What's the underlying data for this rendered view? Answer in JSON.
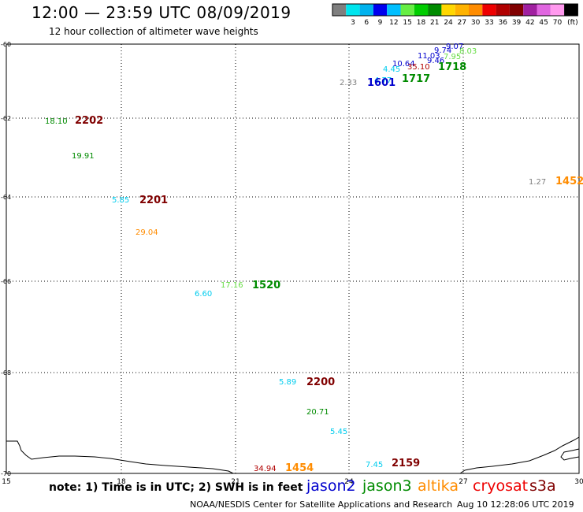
{
  "header": {
    "title": "12:00 — 23:59 UTC 08/09/2019",
    "subtitle": "12 hour collection of altimeter wave heights"
  },
  "color_scale": {
    "unit_label": "(ft)",
    "swatches": [
      {
        "label": "",
        "color": "#7f7f7f"
      },
      {
        "label": "3",
        "color": "#00e5ee"
      },
      {
        "label": "6",
        "color": "#00b2ee"
      },
      {
        "label": "9",
        "color": "#0000ee"
      },
      {
        "label": "12",
        "color": "#00bfff"
      },
      {
        "label": "15",
        "color": "#66ee44"
      },
      {
        "label": "18",
        "color": "#00cd00"
      },
      {
        "label": "21",
        "color": "#008b00"
      },
      {
        "label": "24",
        "color": "#ffd700"
      },
      {
        "label": "27",
        "color": "#ffb300"
      },
      {
        "label": "30",
        "color": "#ff8c00"
      },
      {
        "label": "33",
        "color": "#ee0000"
      },
      {
        "label": "36",
        "color": "#b00000"
      },
      {
        "label": "39",
        "color": "#800000"
      },
      {
        "label": "42",
        "color": "#a020a0"
      },
      {
        "label": "45",
        "color": "#e066e0"
      },
      {
        "label": "70",
        "color": "#ff99ee"
      },
      {
        "label": "",
        "color": "#000000"
      }
    ]
  },
  "axes": {
    "x_ticks": [
      "15",
      "18",
      "21",
      "24",
      "27",
      "30"
    ],
    "y_ticks": [
      "-60",
      "-62",
      "-64",
      "-66",
      "-68",
      "-70"
    ]
  },
  "observations": [
    {
      "text": "9.07",
      "color": "#0000cd"
    },
    {
      "text": "8.03",
      "color": "#66dd44"
    },
    {
      "text": "9.74",
      "color": "#0000cd"
    },
    {
      "text": "7.95",
      "color": "#66dd44"
    },
    {
      "text": "11.03",
      "color": "#0000cd"
    },
    {
      "text": "9.46",
      "color": "#0000cd"
    },
    {
      "text": "10.64",
      "color": "#0000cd"
    },
    {
      "text": "35.10",
      "color": "#b00000"
    },
    {
      "text": "4.45",
      "color": "#00ccee"
    },
    {
      "text": "1718",
      "color": "#008b00"
    },
    {
      "text": "4.77",
      "color": "#00ccee"
    },
    {
      "text": "1717",
      "color": "#008b00"
    },
    {
      "text": "2.33",
      "color": "#7f7f7f"
    },
    {
      "text": "1601",
      "color": "#0000cd"
    },
    {
      "text": "18.10",
      "color": "#008b00"
    },
    {
      "text": "2202",
      "color": "#800000"
    },
    {
      "text": "19.91",
      "color": "#008b00"
    },
    {
      "text": "1.27",
      "color": "#7f7f7f"
    },
    {
      "text": "1452",
      "color": "#ff8c00"
    },
    {
      "text": "5.85",
      "color": "#00ccee"
    },
    {
      "text": "2201",
      "color": "#800000"
    },
    {
      "text": "29.04",
      "color": "#ff8c00"
    },
    {
      "text": "17.16",
      "color": "#66dd44"
    },
    {
      "text": "1520",
      "color": "#008b00"
    },
    {
      "text": "6.60",
      "color": "#00ccee"
    },
    {
      "text": "5.89",
      "color": "#00ccee"
    },
    {
      "text": "2200",
      "color": "#800000"
    },
    {
      "text": "20.71",
      "color": "#008b00"
    },
    {
      "text": "5.45",
      "color": "#00ccee"
    },
    {
      "text": "34.94",
      "color": "#b00000"
    },
    {
      "text": "1454",
      "color": "#ff8c00"
    },
    {
      "text": "7.45",
      "color": "#00ccee"
    },
    {
      "text": "2159",
      "color": "#800000"
    }
  ],
  "footer": {
    "note": "note: 1) Time is in UTC; 2) SWH is in feet",
    "satellites": [
      {
        "name": "jason2",
        "color": "#0000cd"
      },
      {
        "name": "jason3",
        "color": "#008b00"
      },
      {
        "name": "altika",
        "color": "#ff8c00"
      },
      {
        "name": "cryosat",
        "color": "#ee0000"
      },
      {
        "name": "s3a",
        "color": "#800000"
      }
    ],
    "credit": "NOAA/NESDIS Center for Satellite Applications and Research",
    "generated": "Aug 10 12:28:06 UTC 2019"
  }
}
